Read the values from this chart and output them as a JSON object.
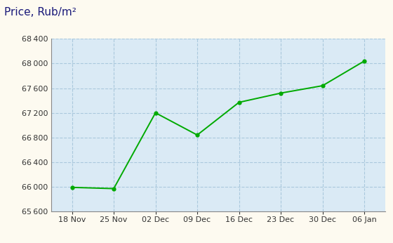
{
  "x_labels": [
    "18 Nov",
    "25 Nov",
    "02 Dec",
    "09 Dec",
    "16 Dec",
    "23 Dec",
    "30 Dec",
    "06 Jan"
  ],
  "y_values": [
    65990,
    65970,
    67200,
    66840,
    67370,
    67520,
    67640,
    68040
  ],
  "ylabel": "Price, Rub/m²",
  "ylim": [
    65600,
    68400
  ],
  "yticks": [
    65600,
    66000,
    66400,
    66800,
    67200,
    67600,
    68000,
    68400
  ],
  "line_color": "#00aa00",
  "marker_color": "#00aa00",
  "bg_color": "#daeaf5",
  "outer_bg": "#fdfaf0",
  "grid_color": "#aac8dd",
  "title_color": "#1a1a7a",
  "title_fontsize": 11,
  "tick_fontsize": 8,
  "axis_border_color": "#888888"
}
